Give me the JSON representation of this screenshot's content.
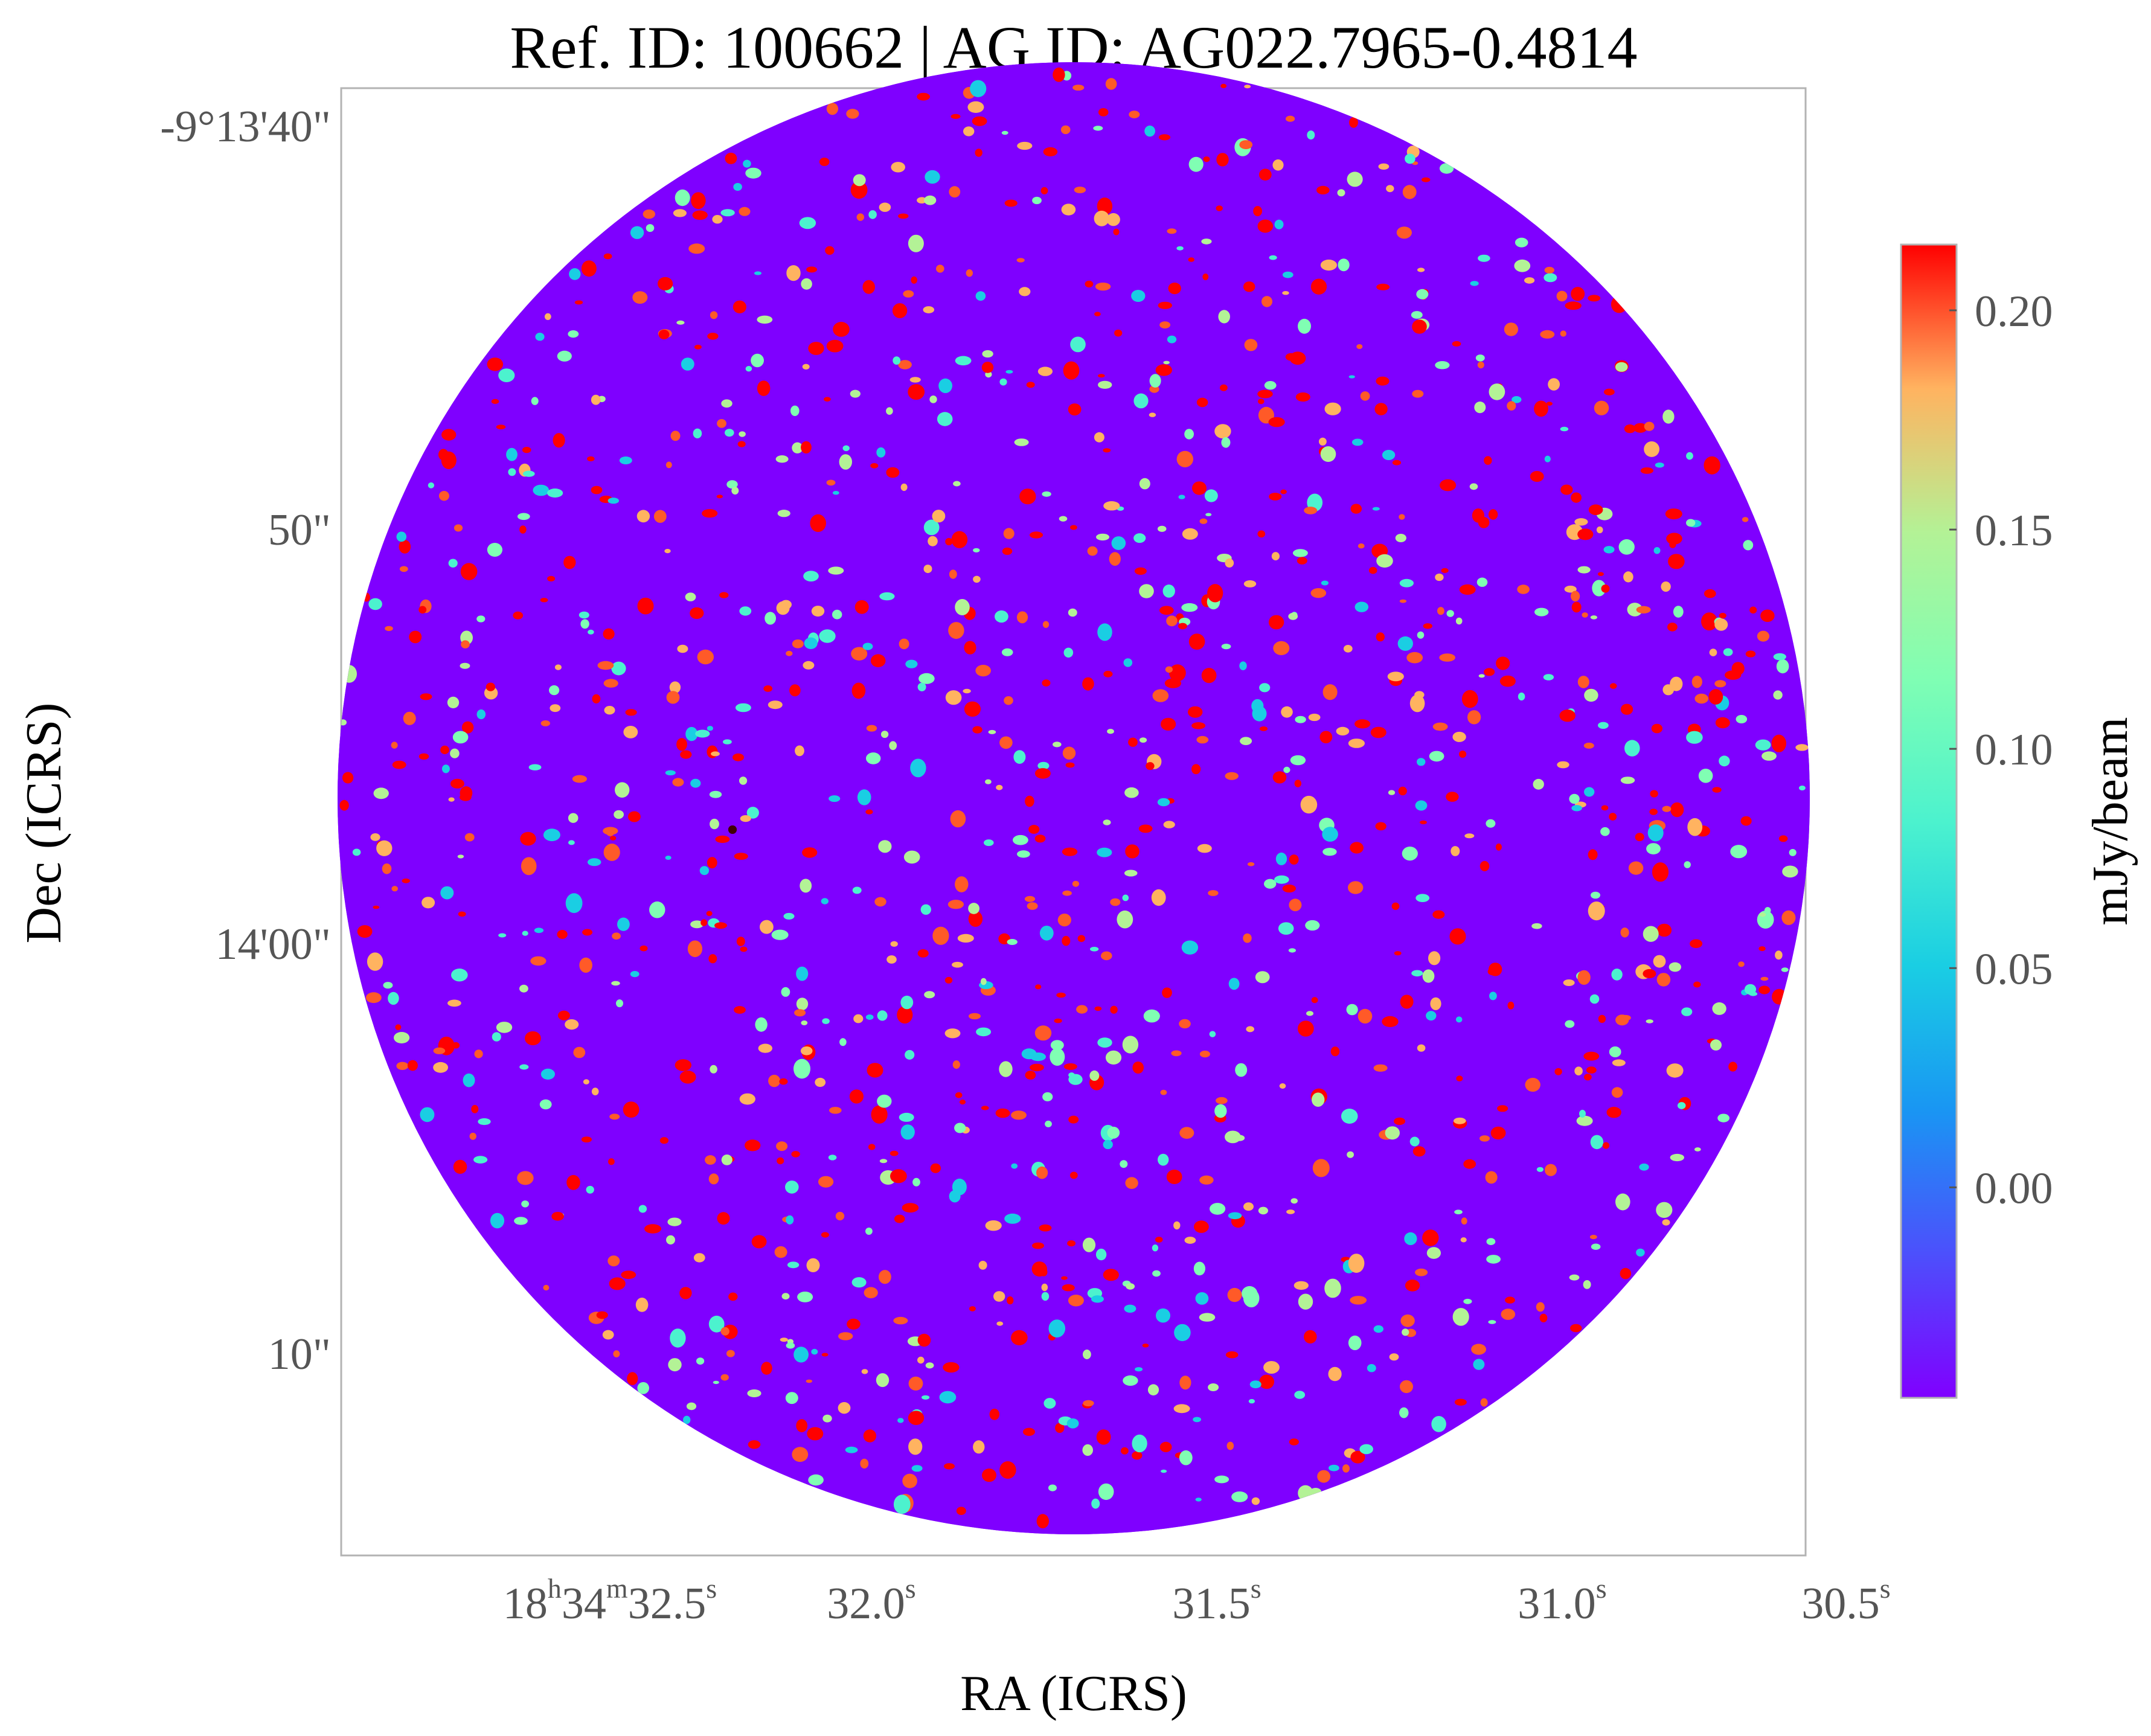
{
  "chart_data": {
    "type": "heatmap",
    "title": "Ref. ID: 100662 | AG ID: AG022.7965-0.4814",
    "xlabel": "RA (ICRS)",
    "ylabel": "Dec (ICRS)",
    "x_ticks": [
      {
        "base": "18",
        "parts": [
          [
            "h",
            "34"
          ],
          [
            "m",
            "32.5"
          ],
          [
            "s",
            ""
          ]
        ]
      },
      {
        "base": "32.0",
        "parts": [
          [
            "s",
            ""
          ]
        ]
      },
      {
        "base": "31.5",
        "parts": [
          [
            "s",
            ""
          ]
        ]
      },
      {
        "base": "31.0",
        "parts": [
          [
            "s",
            ""
          ]
        ]
      },
      {
        "base": "30.5",
        "parts": [
          [
            "s",
            ""
          ]
        ]
      }
    ],
    "y_ticks": [
      "-9°13'40\"",
      "50\"",
      "14'00\"",
      "10\""
    ],
    "colorbar": {
      "label": "mJy/beam",
      "ticks": [
        "0.20",
        "0.15",
        "0.10",
        "0.05",
        "0.00"
      ],
      "tick_values": [
        0.2,
        0.15,
        0.1,
        0.05,
        0.0
      ],
      "vmin": -0.048,
      "vmax": 0.215,
      "colormap": "rainbow"
    },
    "image_shape": "circular primary-beam footprint",
    "image_description": "noise-like continuum map; values mostly between about -0.04 and 0.12 mJy/beam with scattered peaks up to ~0.2",
    "colors": {
      "low": "#8000ff",
      "mid_low": "#00b4eb",
      "mid": "#80ffb4",
      "mid_high": "#ffb360",
      "high": "#ff0000",
      "frame": "#b3b3b3"
    }
  }
}
